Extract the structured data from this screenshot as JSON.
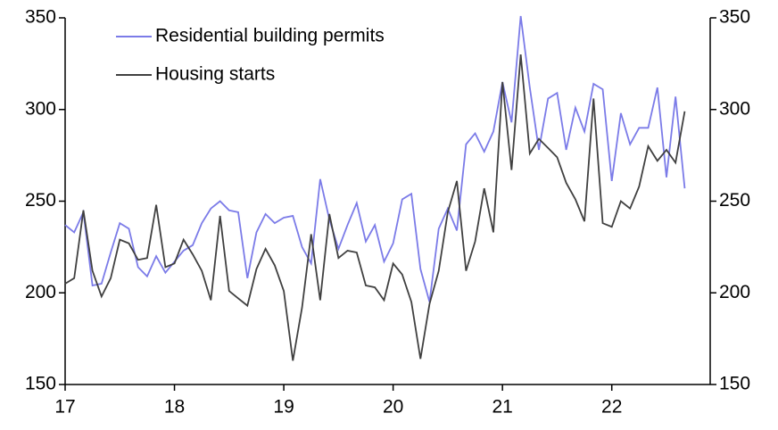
{
  "chart_data": {
    "type": "line",
    "x": [
      17,
      17.083,
      17.167,
      17.25,
      17.333,
      17.417,
      17.5,
      17.583,
      17.667,
      17.75,
      17.833,
      17.917,
      18,
      18.083,
      18.167,
      18.25,
      18.333,
      18.417,
      18.5,
      18.583,
      18.667,
      18.75,
      18.833,
      18.917,
      19,
      19.083,
      19.167,
      19.25,
      19.333,
      19.417,
      19.5,
      19.583,
      19.667,
      19.75,
      19.833,
      19.917,
      20,
      20.083,
      20.167,
      20.25,
      20.333,
      20.417,
      20.5,
      20.583,
      20.667,
      20.75,
      20.833,
      20.917,
      21,
      21.083,
      21.167,
      21.25,
      21.333,
      21.417,
      21.5,
      21.583,
      21.667,
      21.75,
      21.833,
      21.917,
      22,
      22.083,
      22.167,
      22.25,
      22.333,
      22.417,
      22.5,
      22.583,
      22.667
    ],
    "series": [
      {
        "name": "Residential building permits",
        "color": "#7b7be8",
        "axis": "y",
        "values": [
          237,
          233,
          244,
          204,
          205,
          222,
          238,
          235,
          214,
          209,
          220,
          211,
          217,
          223,
          226,
          238,
          246,
          250,
          245,
          244,
          208,
          233,
          243,
          238,
          241,
          242,
          225,
          216,
          262,
          240,
          224,
          237,
          249,
          228,
          237,
          217,
          227,
          251,
          254,
          213,
          195,
          235,
          246,
          234,
          281,
          287,
          277,
          288,
          315,
          293,
          351,
          312,
          278,
          306,
          309,
          278,
          301,
          288,
          314,
          311,
          261,
          298,
          281,
          290,
          290,
          312,
          263,
          307,
          257
        ]
      },
      {
        "name": "Housing starts",
        "color": "#404040",
        "axis": "y2",
        "values": [
          205,
          208,
          245,
          212,
          198,
          208,
          229,
          227,
          218,
          219,
          248,
          214,
          216,
          229,
          221,
          212,
          196,
          242,
          201,
          197,
          193,
          213,
          224,
          215,
          201,
          163,
          192,
          232,
          196,
          243,
          219,
          223,
          222,
          204,
          203,
          196,
          216,
          210,
          195,
          164,
          194,
          212,
          244,
          261,
          212,
          228,
          257,
          233,
          315,
          267,
          330,
          276,
          284,
          279,
          274,
          260,
          251,
          239,
          306,
          238,
          236,
          250,
          246,
          258,
          280,
          272,
          278,
          271,
          299
        ]
      }
    ],
    "xlim": [
      17,
      22.9
    ],
    "xticks": [
      17,
      18,
      19,
      20,
      21,
      22
    ],
    "ylim": [
      150,
      350
    ],
    "yticks": [
      150,
      200,
      250,
      300,
      350
    ],
    "y2lim": [
      150,
      350
    ],
    "y2ticks": [
      150,
      200,
      250,
      300,
      350
    ],
    "legend": "upper left"
  }
}
